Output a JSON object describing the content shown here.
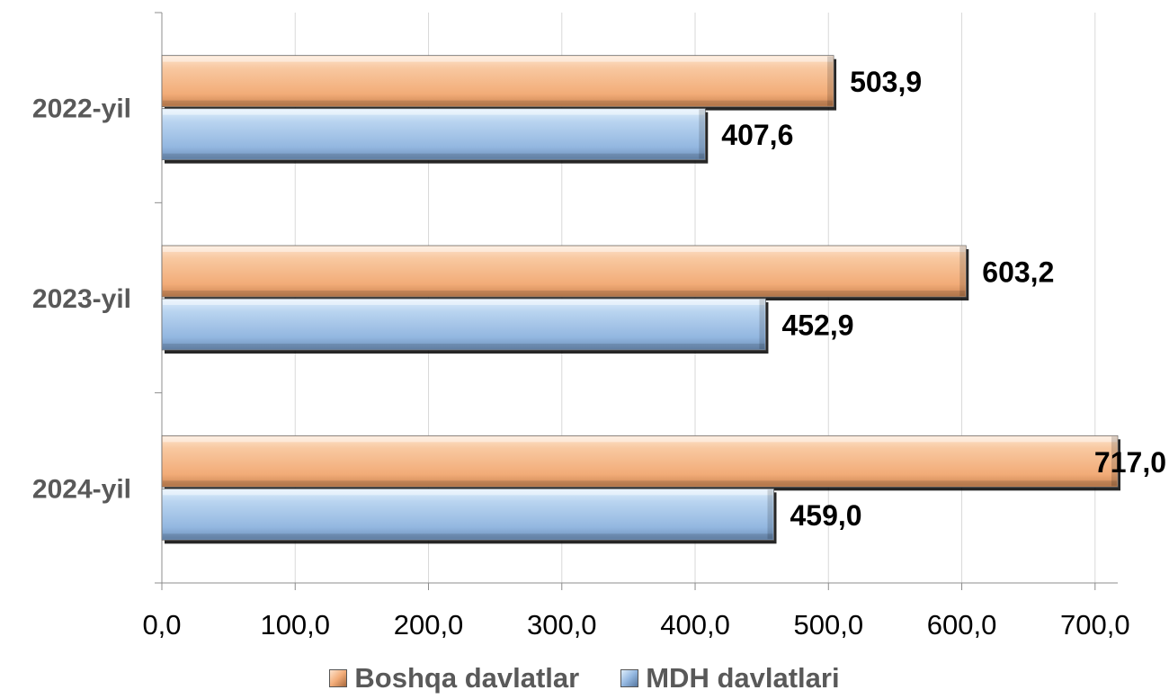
{
  "chart_data": {
    "type": "bar",
    "orientation": "horizontal",
    "categories": [
      "2022-yil",
      "2023-yil",
      "2024-yil"
    ],
    "series": [
      {
        "name": "Boshqa davlatlar",
        "values": [
          503.9,
          603.2,
          717.0
        ],
        "labels": [
          "503,9",
          "603,2",
          "717,0"
        ],
        "color": "#f5b88a"
      },
      {
        "name": "MDH davlatlari",
        "values": [
          407.6,
          452.9,
          459.0
        ],
        "labels": [
          "407,6",
          "452,9",
          "459,0"
        ],
        "color": "#9dbfe3"
      }
    ],
    "x_ticks": [
      0,
      100,
      200,
      300,
      400,
      500,
      600,
      700
    ],
    "x_tick_labels": [
      "0,0",
      "100,0",
      "200,0",
      "300,0",
      "400,0",
      "500,0",
      "600,0",
      "700,0"
    ],
    "xlim": [
      0,
      717
    ],
    "grid": true,
    "legend_position": "bottom",
    "title": "",
    "xlabel": "",
    "ylabel": ""
  }
}
